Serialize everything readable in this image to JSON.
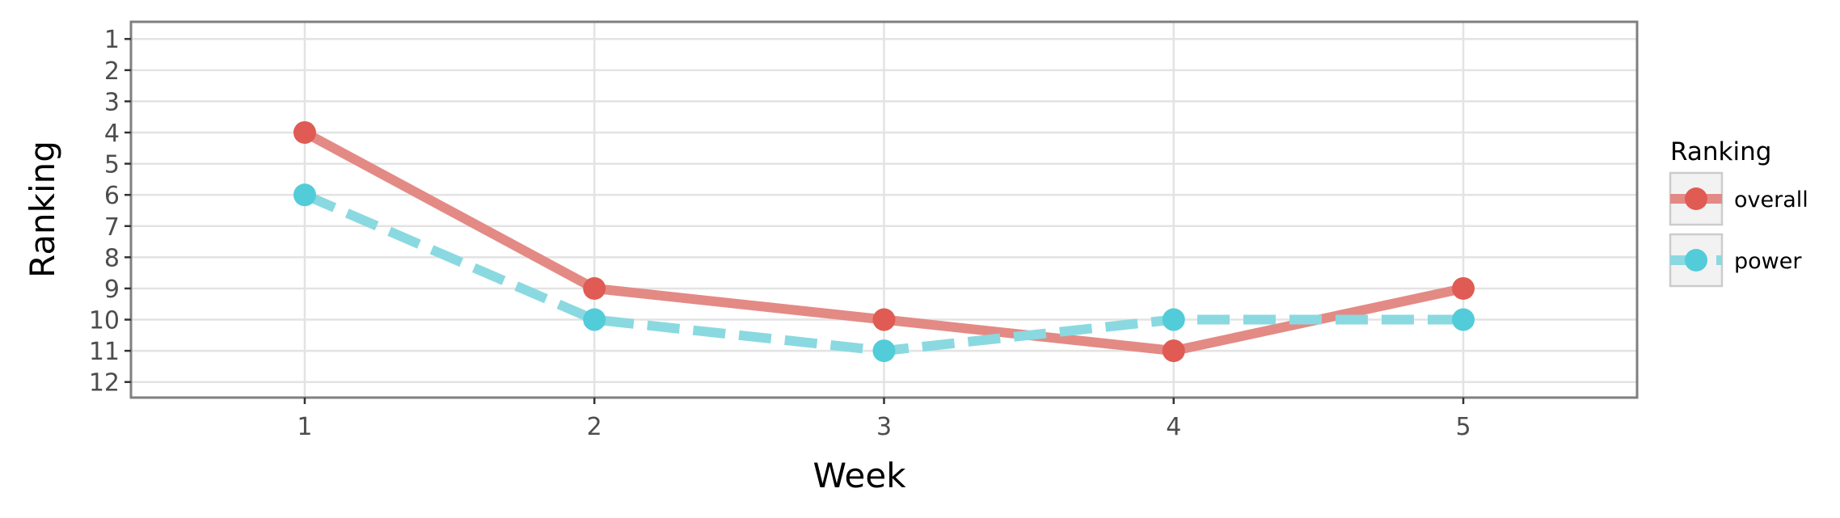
{
  "chart_data": {
    "type": "line",
    "xlabel": "Week",
    "ylabel": "Ranking",
    "x": [
      1,
      2,
      3,
      4,
      5
    ],
    "x_ticks": [
      1,
      2,
      3,
      4,
      5
    ],
    "xlim": [
      0.4,
      5.6
    ],
    "y_ticks": [
      1,
      2,
      3,
      4,
      5,
      6,
      7,
      8,
      9,
      10,
      11,
      12
    ],
    "ylim": [
      12.5,
      0.45
    ],
    "y_reversed": true,
    "grid": true,
    "legend": {
      "title": "Ranking",
      "placement": "right"
    },
    "series": [
      {
        "name": "overall",
        "values": [
          4,
          9,
          10,
          11,
          9
        ],
        "color": "#e05b53",
        "line_color": "#e38a85",
        "line_style": "solid"
      },
      {
        "name": "power",
        "values": [
          6,
          10,
          11,
          10,
          10
        ],
        "color": "#52ccd8",
        "line_color": "#8ad9e0",
        "line_style": "dashed"
      }
    ]
  }
}
